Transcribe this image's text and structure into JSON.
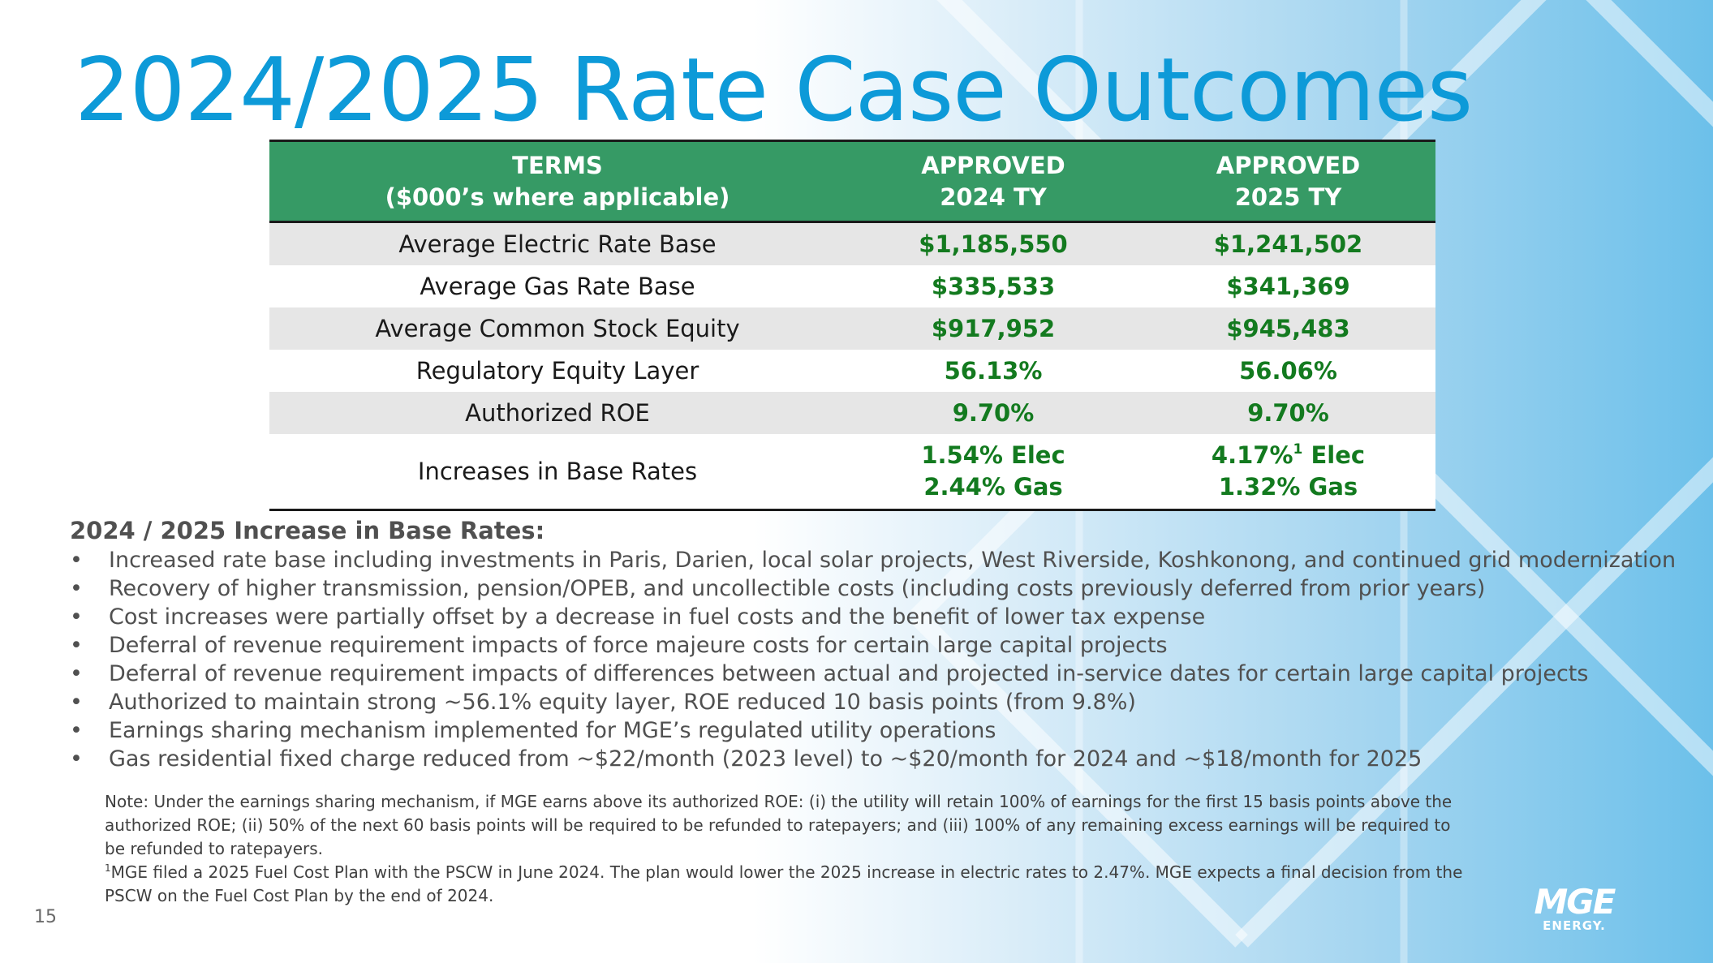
{
  "title": "2024/2025 Rate Case Outcomes",
  "table": {
    "headers": [
      {
        "line1": "TERMS",
        "line2": "($000’s where applicable)"
      },
      {
        "line1": "APPROVED",
        "line2": "2024 TY"
      },
      {
        "line1": "APPROVED",
        "line2": "2025 TY"
      }
    ],
    "rows": [
      {
        "term": "Average Electric Rate Base",
        "y2024": "$1,185,550",
        "y2025": "$1,241,502"
      },
      {
        "term": "Average Gas Rate Base",
        "y2024": "$335,533",
        "y2025": "$341,369"
      },
      {
        "term": "Average Common Stock Equity",
        "y2024": "$917,952",
        "y2025": "$945,483"
      },
      {
        "term": "Regulatory Equity Layer",
        "y2024": "56.13%",
        "y2025": "56.06%"
      },
      {
        "term": "Authorized ROE",
        "y2024": "9.70%",
        "y2025": "9.70%"
      }
    ],
    "last_row": {
      "term": "Increases in Base Rates",
      "y2024_line1": "1.54% Elec",
      "y2024_line2": "2.44% Gas",
      "y2025_line1_pre": "4.17%",
      "y2025_line1_sup": "1",
      "y2025_line1_post": " Elec",
      "y2025_line2": "1.32% Gas"
    }
  },
  "section_heading": "2024 / 2025 Increase in Base Rates:",
  "bullet_marker": "•",
  "bullets": [
    "Increased rate base including investments in Paris, Darien, local solar projects, West Riverside, Koshkonong, and continued grid modernization",
    "Recovery of higher transmission, pension/OPEB, and uncollectible costs (including costs previously deferred from prior years)",
    "Cost increases were partially offset by a decrease in fuel costs and the benefit of lower tax expense",
    "Deferral of revenue requirement impacts of force majeure costs for certain large capital projects",
    "Deferral of revenue requirement impacts of differences between actual and projected in-service dates for certain large capital projects",
    "Authorized to maintain strong ~56.1% equity layer, ROE reduced 10 basis points (from 9.8%)",
    "Earnings sharing mechanism implemented for MGE’s regulated utility operations",
    "Gas residential fixed charge reduced from ~$22/month (2023 level) to ~$20/month for 2024 and ~$18/month for 2025"
  ],
  "note": "Note: Under the earnings sharing mechanism, if MGE earns above its authorized ROE: (i) the utility will retain 100% of earnings for the first 15 basis points above the authorized ROE; (ii) 50% of the next 60 basis points will be required to be refunded to ratepayers; and (iii) 100% of any remaining excess earnings will be required to be refunded to ratepayers.",
  "footnote_marker": "1",
  "footnote": "MGE filed a 2025 Fuel Cost Plan with the PSCW in June 2024. The plan would lower the 2025 increase in electric rates to 2.47%. MGE expects a final decision from the PSCW on the Fuel Cost Plan by the end of 2024.",
  "page_number": "15",
  "logo": {
    "line1": "MGE",
    "line2": "ENERGY."
  },
  "colors": {
    "title": "#0d9ad8",
    "header_bg": "#369a65",
    "value_text": "#137a1f",
    "body_text": "#505050"
  }
}
